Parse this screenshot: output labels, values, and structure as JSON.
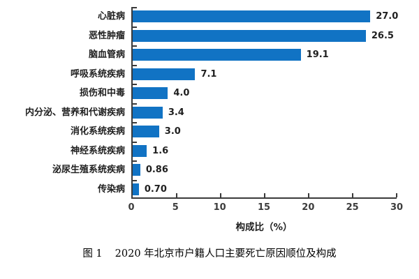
{
  "page": {
    "background": "#ffffff"
  },
  "chart_data": {
    "type": "bar",
    "orientation": "horizontal",
    "title": "",
    "categories": [
      "心脏病",
      "恶性肿瘤",
      "脑血管病",
      "呼吸系统疾病",
      "损伤和中毒",
      "内分泌、营养和代谢疾病",
      "消化系统疾病",
      "神经系统疾病",
      "泌尿生殖系统疾病",
      "传染病"
    ],
    "values": [
      27.0,
      26.5,
      19.1,
      7.1,
      4.0,
      3.4,
      3.0,
      1.6,
      0.86,
      0.7
    ],
    "value_labels": [
      "27.0",
      "26.5",
      "19.1",
      "7.1",
      "4.0",
      "3.4",
      "3.0",
      "1.6",
      "0.86",
      "0.70"
    ],
    "xlabel": "构成比（%）",
    "ylabel": "",
    "xlim": [
      0,
      30
    ],
    "xticks": [
      0,
      5,
      10,
      15,
      20,
      25,
      30
    ],
    "bar_color": "#1173c4",
    "axis_color": "#3a3a3a",
    "grid": false,
    "legend": "none"
  },
  "caption": {
    "label": "图 1",
    "text": "2020 年北京市户籍人口主要死亡原因顺位及构成"
  }
}
